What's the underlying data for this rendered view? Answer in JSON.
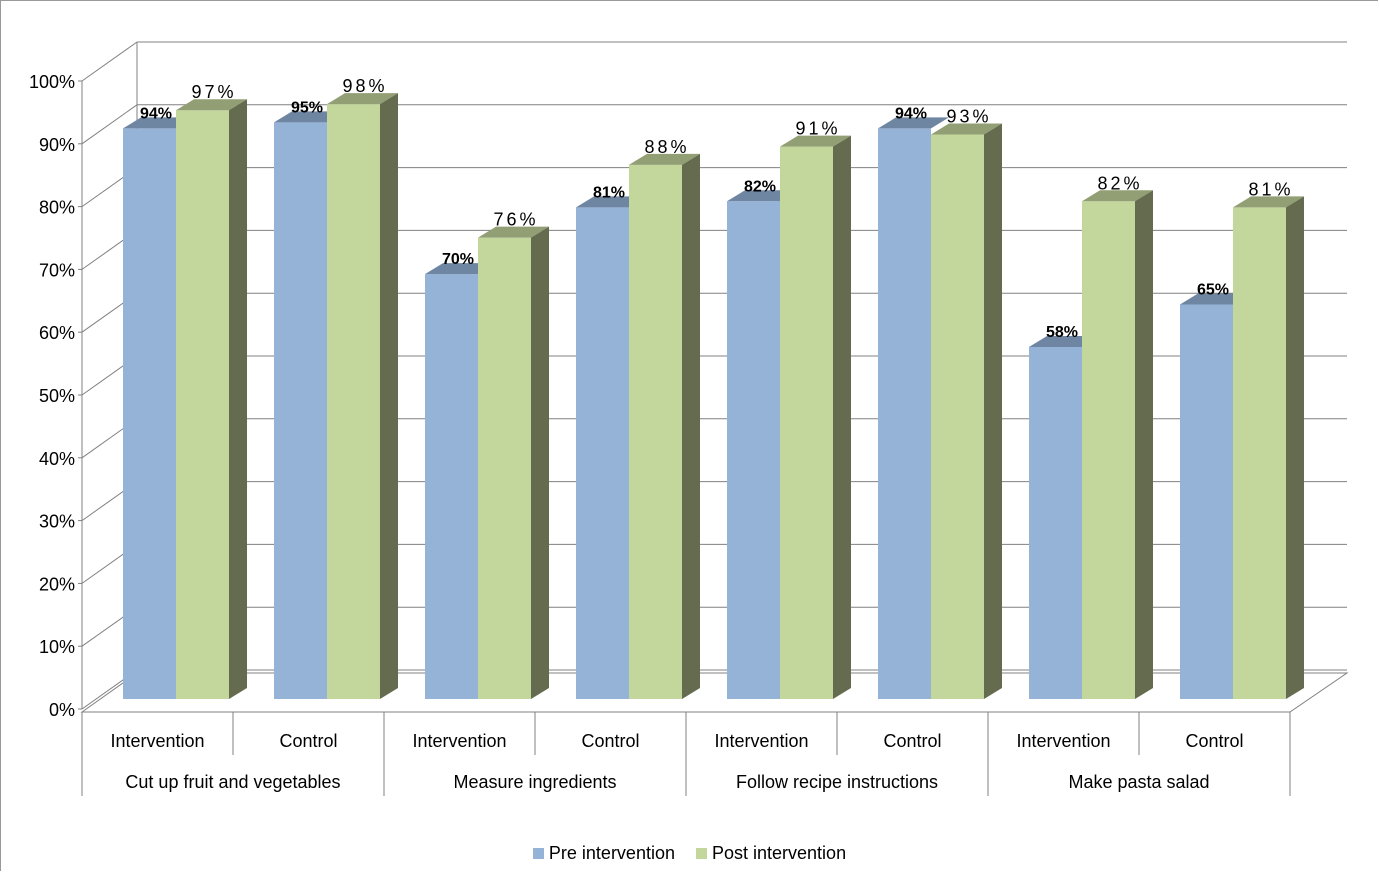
{
  "chart_data": {
    "type": "bar",
    "groups": [
      "Cut up fruit and vegetables",
      "Measure ingredients",
      "Follow recipe instructions",
      "Make pasta salad"
    ],
    "subcategories": [
      "Intervention",
      "Control"
    ],
    "categories": [
      "Cut up fruit and vegetables - Intervention",
      "Cut up fruit and vegetables - Control",
      "Measure ingredients - Intervention",
      "Measure ingredients - Control",
      "Follow recipe instructions - Intervention",
      "Follow recipe instructions - Control",
      "Make pasta salad - Intervention",
      "Make pasta salad - Control"
    ],
    "series": [
      {
        "name": "Pre intervention",
        "values": [
          94,
          95,
          70,
          81,
          82,
          94,
          58,
          65
        ],
        "labels": [
          "94%",
          "95%",
          "70%",
          "81%",
          "82%",
          "94%",
          "58%",
          "65%"
        ]
      },
      {
        "name": "Post intervention",
        "values": [
          97,
          98,
          76,
          88,
          91,
          93,
          82,
          81
        ],
        "labels": [
          "97%",
          "98%",
          "76%",
          "88%",
          "91%",
          "93%",
          "82%",
          "81%"
        ]
      }
    ],
    "yticks": [
      "0%",
      "10%",
      "20%",
      "30%",
      "40%",
      "50%",
      "60%",
      "70%",
      "80%",
      "90%",
      "100%"
    ],
    "ylim": [
      0,
      100
    ],
    "grid": true,
    "legend_position": "bottom",
    "colors": {
      "pre_front": "#95b3d7",
      "pre_top": "#6f86a3",
      "post_front": "#c3d69b",
      "post_top": "#929f74",
      "post_side": "#646b4f",
      "grid": "#808080"
    }
  }
}
